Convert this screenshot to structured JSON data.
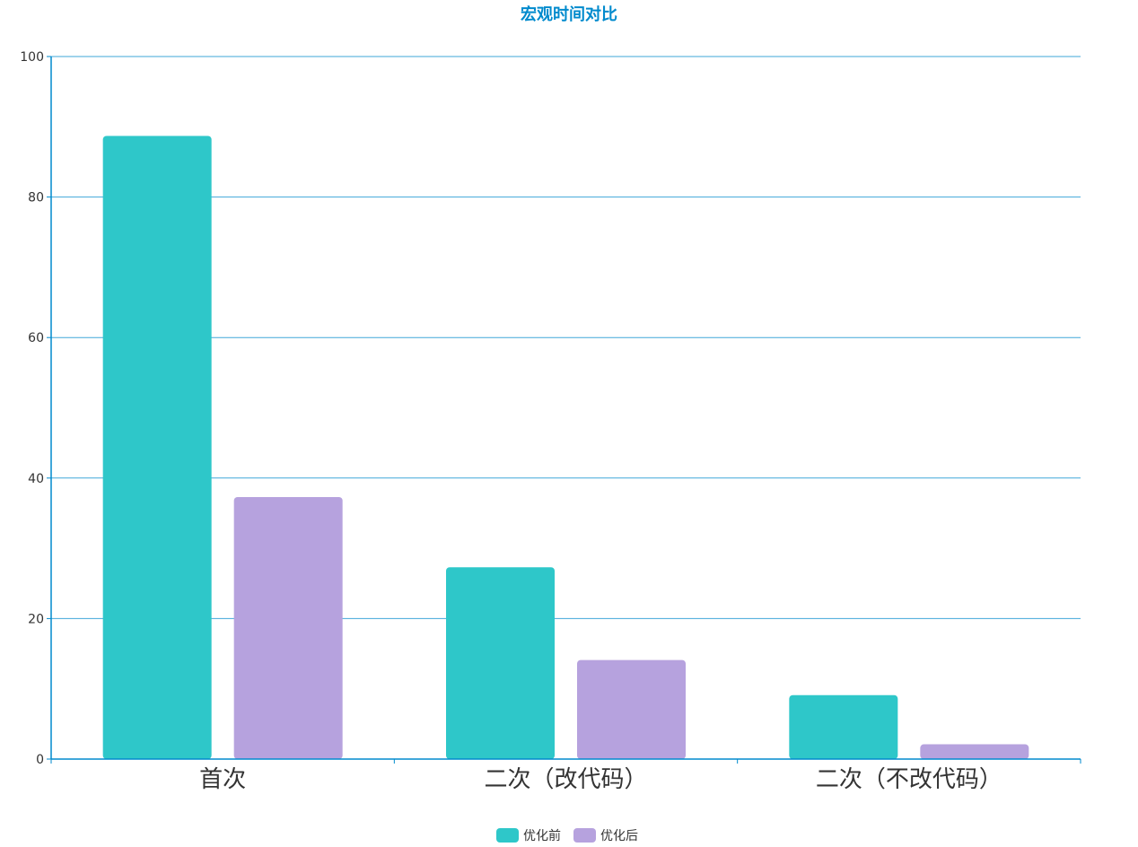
{
  "chart_data": {
    "type": "bar",
    "title": "宏观时间对比",
    "categories": [
      "首次",
      "二次（改代码）",
      "二次（不改代码）"
    ],
    "series": [
      {
        "name": "优化前",
        "color": "#2ec7c9",
        "values": [
          88.7,
          27.3,
          9.1
        ]
      },
      {
        "name": "优化后",
        "color": "#b6a2de",
        "values": [
          37.3,
          14.1,
          2.1
        ]
      }
    ],
    "ylim": [
      0,
      100
    ],
    "yticks": [
      "0",
      "20",
      "40",
      "60",
      "80",
      "100"
    ],
    "grid": true,
    "legend_position": "bottom-center",
    "colors": {
      "title": "#008acd",
      "axis": "#008acd",
      "grid": "#408829"
    }
  }
}
